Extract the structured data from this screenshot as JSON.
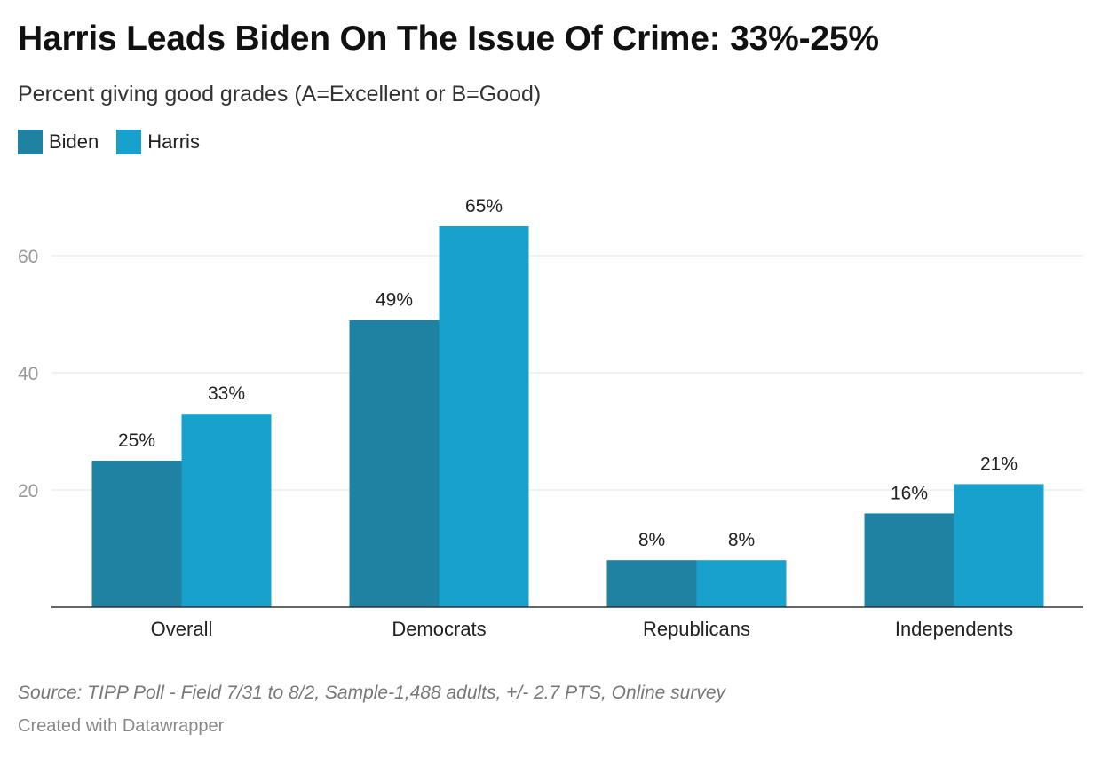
{
  "header": {
    "title": "Harris Leads Biden On The Issue Of Crime: 33%-25%",
    "subtitle": "Percent giving good grades (A=Excellent or B=Good)"
  },
  "legend": [
    {
      "label": "Biden",
      "color": "#1f82a3"
    },
    {
      "label": "Harris",
      "color": "#18a1cd"
    }
  ],
  "footer": {
    "source": "Source: TIPP Poll - Field 7/31 to 8/2, Sample-1,488 adults, +/- 2.7 PTS, Online survey",
    "credit": "Created with Datawrapper"
  },
  "chart_data": {
    "type": "bar",
    "categories": [
      "Overall",
      "Democrats",
      "Republicans",
      "Independents"
    ],
    "series": [
      {
        "name": "Biden",
        "values": [
          25,
          49,
          8,
          16
        ],
        "labels": [
          "25%",
          "49%",
          "8%",
          "16%"
        ],
        "color": "#1f82a3"
      },
      {
        "name": "Harris",
        "values": [
          33,
          65,
          8,
          21
        ],
        "labels": [
          "33%",
          "65%",
          "8%",
          "21%"
        ],
        "color": "#18a1cd"
      }
    ],
    "yticks": [
      20,
      40,
      60
    ],
    "ylim": [
      0,
      70
    ],
    "grid": true,
    "legend_position": "top-left"
  }
}
